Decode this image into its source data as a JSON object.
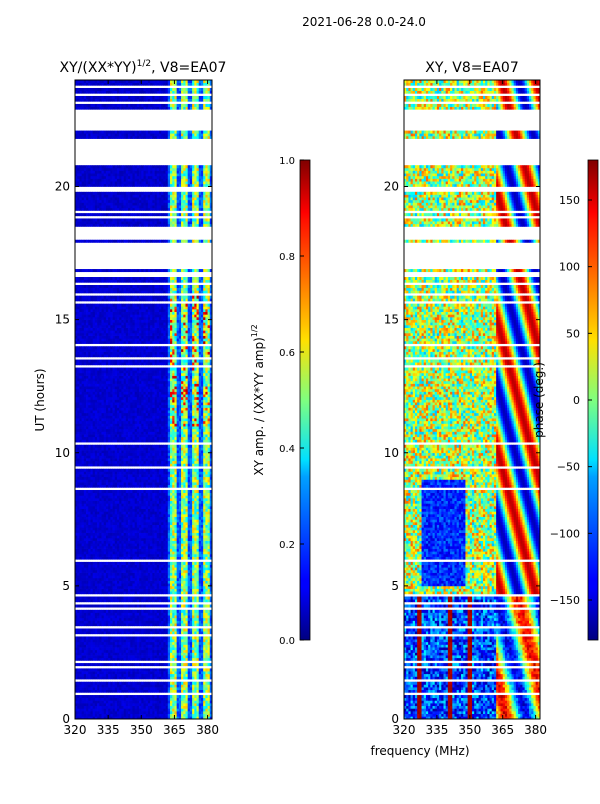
{
  "suptitle": "2021-06-28 0.0-24.0",
  "chart_data": [
    {
      "type": "heatmap",
      "title_base": "XY/(XX*YY)",
      "title_exp": "1/2",
      "title_suffix": ", V8=EA07",
      "xlabel": "",
      "ylabel": "UT (hours)",
      "xlim": [
        320,
        382
      ],
      "ylim": [
        0,
        24
      ],
      "xticks": [
        320,
        335,
        350,
        365,
        380
      ],
      "yticks": [
        0,
        5,
        10,
        15,
        20
      ],
      "colorbar": {
        "label": "XY amp. / (XX*YY amp)",
        "label_exp": "1/2",
        "range": [
          0.0,
          1.0
        ],
        "ticks": [
          "0.0",
          "0.2",
          "0.4",
          "0.6",
          "0.8",
          "1.0"
        ],
        "tick_values": [
          0.0,
          0.2,
          0.4,
          0.6,
          0.8,
          1.0
        ]
      },
      "bright_bands_mhz": [
        [
          363,
          366
        ],
        [
          368,
          371
        ],
        [
          373,
          376
        ],
        [
          378,
          381
        ]
      ],
      "background_level": 0.08,
      "band_level": 0.45
    },
    {
      "type": "heatmap",
      "title": "XY, V8=EA07",
      "xlabel": "frequency (MHz)",
      "ylabel": "",
      "xlim": [
        320,
        382
      ],
      "ylim": [
        0,
        24
      ],
      "xticks": [
        320,
        335,
        350,
        365,
        380
      ],
      "yticks": [
        0,
        5,
        10,
        15,
        20
      ],
      "colorbar": {
        "label": "phase (deg.)",
        "range": [
          -180,
          180
        ],
        "ticks": [
          "−150",
          "−100",
          "−50",
          "0",
          "50",
          "100",
          "150"
        ],
        "tick_values": [
          -150,
          -100,
          -50,
          0,
          50,
          100,
          150
        ]
      },
      "red_lines_mhz": [
        327,
        341,
        350
      ],
      "red_lines_ut_range": [
        0,
        4.6
      ]
    }
  ],
  "data_gaps_ut": [
    [
      0.95,
      1.0
    ],
    [
      1.4,
      1.5
    ],
    [
      1.9,
      2.0
    ],
    [
      2.15,
      2.2
    ],
    [
      3.1,
      3.2
    ],
    [
      3.4,
      3.5
    ],
    [
      4.1,
      4.25
    ],
    [
      4.35,
      4.4
    ],
    [
      4.6,
      4.7
    ],
    [
      5.1,
      5.15
    ],
    [
      5.9,
      6.0
    ],
    [
      7.0,
      7.05
    ],
    [
      8.3,
      8.35
    ],
    [
      8.6,
      8.7
    ],
    [
      8.9,
      8.95
    ],
    [
      9.4,
      9.5
    ],
    [
      10.1,
      10.15
    ],
    [
      10.3,
      10.4
    ],
    [
      11.4,
      11.45
    ],
    [
      12.4,
      12.45
    ],
    [
      13.2,
      13.3
    ],
    [
      13.5,
      13.6
    ],
    [
      14.0,
      14.1
    ],
    [
      14.3,
      14.35
    ],
    [
      15.6,
      15.7
    ],
    [
      15.9,
      16.0
    ],
    [
      16.3,
      16.45
    ],
    [
      16.6,
      16.8
    ],
    [
      16.95,
      17.9
    ],
    [
      18.05,
      18.55
    ],
    [
      18.85,
      18.9
    ],
    [
      19.0,
      19.1
    ],
    [
      19.8,
      20.0
    ],
    [
      20.8,
      21.8
    ],
    [
      22.1,
      22.9
    ],
    [
      23.1,
      23.2
    ],
    [
      23.4,
      23.5
    ],
    [
      23.75,
      23.85
    ]
  ]
}
